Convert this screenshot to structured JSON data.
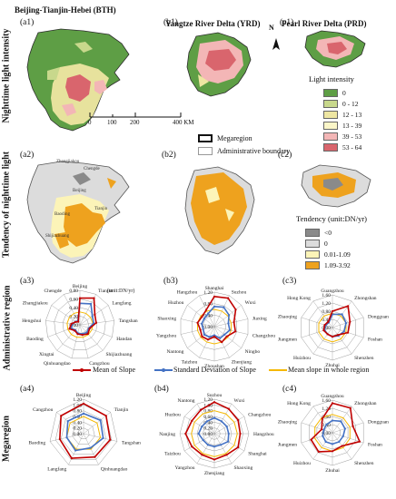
{
  "regions": {
    "bth": "Beijing-Tianjin-Hebei (BTH)",
    "yrd": "Yangtze River Delta (YRD)",
    "prd": "Pearl River Delta (PRD)"
  },
  "row_labels": {
    "row1": "Nighttime light intensity",
    "row2": "Tendency of nighttime light",
    "row3": "Administrative region",
    "row4": "Megaregion"
  },
  "panels": {
    "a1": "(a1)",
    "b1": "(b1)",
    "c1": "(c1)",
    "a2": "(a2)",
    "b2": "(b2)",
    "c2": "(c2)",
    "a3": "(a3)",
    "b3": "(b3)",
    "c3": "(c3)",
    "a4": "(a4)",
    "b4": "(b4)",
    "c4": "(c4)"
  },
  "north_arrow": "N",
  "scalebar": {
    "labels": [
      "0",
      "100",
      "200",
      "400 KM"
    ]
  },
  "boundary_legend": {
    "megaregion": "Megaregion",
    "admin": "Administrative boundary"
  },
  "intensity_legend": {
    "title": "Light intensity",
    "items": [
      {
        "label": "0",
        "color": "#5e9e45"
      },
      {
        "label": "0 - 12",
        "color": "#c8d88c"
      },
      {
        "label": "12 - 13",
        "color": "#eee6a2"
      },
      {
        "label": "13 - 39",
        "color": "#fbf6c8"
      },
      {
        "label": "39 - 53",
        "color": "#f3b6b6"
      },
      {
        "label": "53 - 64",
        "color": "#d9656d"
      }
    ]
  },
  "tendency_legend": {
    "title": "Tendency (unit:DN/yr)",
    "items": [
      {
        "label": "<0",
        "color": "#8a8a8a"
      },
      {
        "label": "0",
        "color": "#dcdcdc"
      },
      {
        "label": "0.01-1.09",
        "color": "#fcf4b8"
      },
      {
        "label": "1.09-3.92",
        "color": "#eea21e"
      }
    ]
  },
  "unit_label": "(unit:DN/yr)",
  "series_legend": {
    "mean": "Mean of  Slope",
    "sd": "Standard Deviation of Slope",
    "whole": "Mean slope in whole region"
  },
  "colors": {
    "mean": "#c00000",
    "sd": "#4472c4",
    "whole": "#f5b800",
    "grid": "#9a9a9a"
  },
  "city_labels": {
    "Beijing": "Beijing",
    "Tianjin": "Tianjin",
    "Langfang": "Langfang",
    "Tangshan": "Tangshan",
    "Handan": "Handan",
    "Shijiazhuang": "Shijiazhuang",
    "Cangzhou": "Cangzhou",
    "Qinhuangdao": "Qinhuangdao",
    "Xingtai": "Xingtai",
    "Baoding": "Baoding",
    "Hengshui": "Hengshui",
    "Zhangjiakou": "Zhangjiakou",
    "Chengde": "Chengde"
  },
  "chart_data": [
    {
      "id": "a3",
      "type": "radar",
      "unit": "(unit:DN/yr)",
      "categories": [
        "Beijing",
        "Tianjin",
        "Langfang",
        "Tangshan",
        "Handan",
        "Shijiazhuang",
        "Cangzhou",
        "Qinhuangdao",
        "Xingtai",
        "Baoding",
        "Hengshui",
        "Zhangjiakou",
        "Chengde"
      ],
      "tick_labels": [
        "0.00",
        "0.20",
        "0.40",
        "0.60",
        "0.80"
      ],
      "rmax": 0.8,
      "grid_levels": 4,
      "series": [
        {
          "key": "mean",
          "values": [
            0.62,
            0.7,
            0.42,
            0.38,
            0.24,
            0.28,
            0.24,
            0.22,
            0.18,
            0.26,
            0.2,
            0.12,
            0.08
          ]
        },
        {
          "key": "sd",
          "values": [
            0.5,
            0.55,
            0.35,
            0.32,
            0.22,
            0.24,
            0.22,
            0.2,
            0.16,
            0.22,
            0.17,
            0.13,
            0.1
          ]
        },
        {
          "key": "whole",
          "values": [
            0.3,
            0.3,
            0.3,
            0.3,
            0.3,
            0.3,
            0.3,
            0.3,
            0.3,
            0.3,
            0.3,
            0.3,
            0.3
          ]
        }
      ]
    },
    {
      "id": "b3",
      "type": "radar",
      "categories": [
        "Shanghai",
        "Suzhou",
        "Wuxi",
        "Jiaxing",
        "Changzhou",
        "Ningbo",
        "Zhenjiang",
        "Zhoushan",
        "Taizhou",
        "Nantong",
        "Yangzhou",
        "Shaoxing",
        "Huzhou",
        "Hangzhou"
      ],
      "tick_labels": [
        "0.00",
        "0.40",
        "0.80",
        "1.20"
      ],
      "rmax": 1.2,
      "grid_levels": 3,
      "series": [
        {
          "key": "mean",
          "values": [
            1.05,
            1.1,
            0.95,
            0.7,
            0.75,
            0.55,
            0.6,
            0.35,
            0.5,
            0.55,
            0.5,
            0.6,
            0.55,
            0.65
          ]
        },
        {
          "key": "sd",
          "values": [
            0.7,
            0.75,
            0.65,
            0.5,
            0.55,
            0.45,
            0.45,
            0.3,
            0.4,
            0.45,
            0.4,
            0.45,
            0.45,
            0.5
          ]
        },
        {
          "key": "whole",
          "values": [
            0.6,
            0.6,
            0.6,
            0.6,
            0.6,
            0.6,
            0.6,
            0.6,
            0.6,
            0.6,
            0.6,
            0.6,
            0.6,
            0.6
          ]
        }
      ]
    },
    {
      "id": "c3",
      "type": "radar",
      "categories": [
        "Guangzhou",
        "Zhongshan",
        "Dongguan",
        "Foshan",
        "Shenzhen",
        "Zhuhai",
        "Huizhou",
        "Jiangmen",
        "Zhaoqing",
        "Hong Kong"
      ],
      "tick_labels": [
        "0.00",
        "0.40",
        "0.80",
        "1.20",
        "1.60"
      ],
      "rmax": 1.6,
      "grid_levels": 4,
      "series": [
        {
          "key": "mean",
          "values": [
            0.8,
            1.3,
            0.9,
            0.8,
            0.45,
            0.45,
            0.4,
            0.45,
            0.4,
            0.35
          ]
        },
        {
          "key": "sd",
          "values": [
            0.65,
            0.8,
            0.7,
            0.6,
            0.5,
            0.45,
            0.4,
            0.4,
            0.35,
            0.3
          ]
        },
        {
          "key": "whole",
          "values": [
            0.7,
            0.7,
            0.7,
            0.7,
            0.7,
            0.7,
            0.7,
            0.7,
            0.7,
            0.7
          ]
        }
      ]
    },
    {
      "id": "a4",
      "type": "radar",
      "categories": [
        "Beijing",
        "Tianjin",
        "Tangshan",
        "Qinhuangdao",
        "Langfang",
        "Baoding",
        "Cangzhou"
      ],
      "tick_labels": [
        "0.00",
        "0.20",
        "0.40",
        "0.60",
        "0.80",
        "1.00",
        "1.20"
      ],
      "rmax": 1.2,
      "grid_levels": 6,
      "series": [
        {
          "key": "mean",
          "values": [
            1.05,
            1.0,
            0.95,
            0.9,
            0.95,
            0.85,
            1.0
          ]
        },
        {
          "key": "sd",
          "values": [
            0.7,
            0.75,
            0.7,
            0.55,
            0.65,
            0.6,
            0.7
          ]
        },
        {
          "key": "whole",
          "values": [
            0.6,
            0.6,
            0.6,
            0.6,
            0.6,
            0.6,
            0.6
          ]
        }
      ]
    },
    {
      "id": "b4",
      "type": "radar",
      "categories": [
        "Suzhou",
        "Wuxi",
        "Changzhou",
        "Hangzhou",
        "Shanghai",
        "Shaoxing",
        "Zhenjiang",
        "Yangzhou",
        "Taizhou",
        "Nanjing",
        "Huzhou",
        "Nantong"
      ],
      "tick_labels": [
        "0.00",
        "0.20",
        "0.40",
        "0.60",
        "0.80",
        "1.00",
        "1.20"
      ],
      "rmax": 1.2,
      "grid_levels": 6,
      "series": [
        {
          "key": "mean",
          "values": [
            1.1,
            1.0,
            0.95,
            0.9,
            0.95,
            0.85,
            0.9,
            0.85,
            0.9,
            1.0,
            0.9,
            0.95
          ]
        },
        {
          "key": "sd",
          "values": [
            0.55,
            0.5,
            0.5,
            0.5,
            0.55,
            0.45,
            0.45,
            0.45,
            0.45,
            0.55,
            0.5,
            0.5
          ]
        },
        {
          "key": "whole",
          "values": [
            0.8,
            0.8,
            0.8,
            0.8,
            0.8,
            0.8,
            0.8,
            0.8,
            0.8,
            0.8,
            0.8,
            0.8
          ]
        }
      ]
    },
    {
      "id": "c4",
      "type": "radar",
      "categories": [
        "Guangzhou",
        "Zhongshan",
        "Dongguan",
        "Foshan",
        "Shenzhen",
        "Zhuhai",
        "Huizhou",
        "Jiangmen",
        "Zhaoqing",
        "Hong Kong"
      ],
      "tick_labels": [
        "0.00",
        "0.40",
        "0.80",
        "1.20",
        "1.60"
      ],
      "rmax": 1.6,
      "grid_levels": 4,
      "series": [
        {
          "key": "mean",
          "values": [
            1.45,
            1.5,
            1.05,
            1.4,
            0.8,
            0.9,
            1.15,
            1.1,
            0.55,
            0.85
          ]
        },
        {
          "key": "sd",
          "values": [
            0.6,
            0.7,
            0.65,
            0.55,
            0.55,
            0.55,
            0.55,
            0.5,
            0.45,
            0.5
          ]
        },
        {
          "key": "whole",
          "values": [
            0.9,
            0.9,
            0.9,
            0.9,
            0.9,
            0.9,
            0.9,
            0.9,
            0.9,
            0.9
          ]
        }
      ]
    }
  ]
}
